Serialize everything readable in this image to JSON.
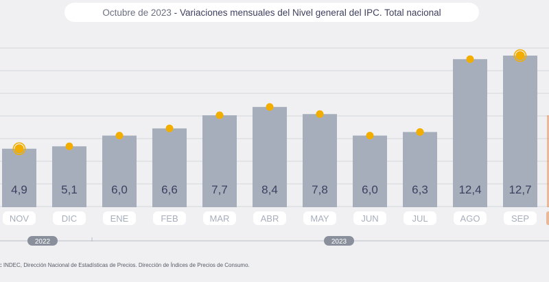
{
  "title": {
    "date": "Octubre de 2023",
    "separator": "-",
    "main": "Variaciones mensuales del Nivel general del IPC. Total nacional"
  },
  "chart_data": {
    "type": "bar",
    "title": "Variaciones mensuales del Nivel general del IPC. Total nacional",
    "categories": [
      "NOV",
      "DIC",
      "ENE",
      "FEB",
      "MAR",
      "ABR",
      "MAY",
      "JUN",
      "JUL",
      "AGO",
      "SEP"
    ],
    "values": [
      4.9,
      5.1,
      6.0,
      6.6,
      7.7,
      8.4,
      7.8,
      6.0,
      6.3,
      12.4,
      12.7
    ],
    "value_labels": [
      "4,9",
      "5,1",
      "6,0",
      "6,6",
      "7,7",
      "8,4",
      "7,8",
      "6,0",
      "6,3",
      "12,4",
      "12,7"
    ],
    "highlighted": [
      "NOV",
      "SEP"
    ],
    "ylim": [
      0,
      14
    ],
    "grid": true,
    "year_groups": [
      {
        "label": "2022",
        "categories": [
          "NOV",
          "DIC"
        ]
      },
      {
        "label": "2023",
        "categories": [
          "ENE",
          "FEB",
          "MAR",
          "ABR",
          "MAY",
          "JUN",
          "JUL",
          "AGO",
          "SEP"
        ]
      }
    ]
  },
  "colors": {
    "bar": "#a6aebc",
    "marker": "#f2ae00",
    "label_text": "#3d3f5e",
    "pill_bg": "#ffffff",
    "pill_text": "#a6aebc",
    "grid": "#d4d6dc",
    "accent": "#e58a4e"
  },
  "source": {
    "prefix": ":",
    "text": "INDEC, Dirección Nacional de Estadísticas de Precios. Dirección de Índices de Precios de Consumo."
  }
}
